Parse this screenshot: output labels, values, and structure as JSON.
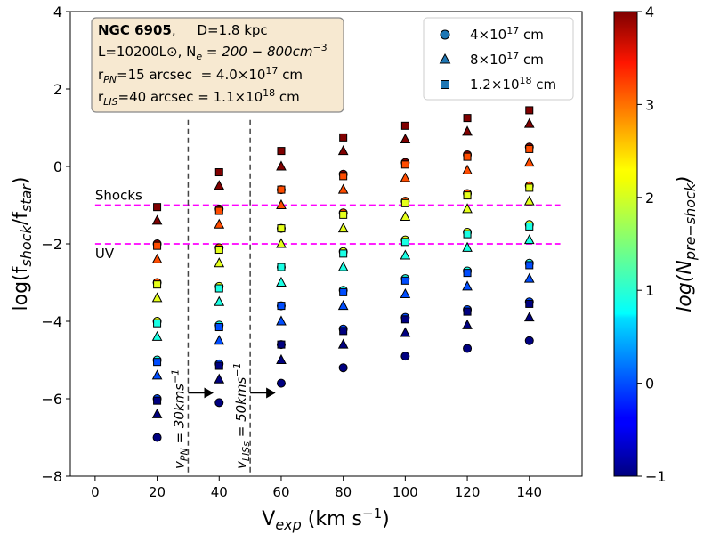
{
  "chart_data": {
    "type": "scatter",
    "xlabel": "V",
    "xlabel_sub": "exp",
    "xlabel_unit": " (km s",
    "xlabel_unit_sup": "−1",
    "xlabel_close": ")",
    "ylabel": "log(f",
    "ylabel_sub1": "shock",
    "ylabel_mid": "/f",
    "ylabel_sub2": "star",
    "ylabel_close": ")",
    "xlim": [
      -8,
      157
    ],
    "ylim": [
      -8,
      4
    ],
    "x_ticks": [
      0,
      20,
      40,
      60,
      80,
      100,
      120,
      140
    ],
    "y_ticks": [
      -8,
      -6,
      -4,
      -2,
      0,
      2,
      4
    ],
    "x_tick_labels": [
      "0",
      "20",
      "40",
      "60",
      "80",
      "100",
      "120",
      "140"
    ],
    "y_tick_labels": [
      "−8",
      "−6",
      "−4",
      "−2",
      "0",
      "2",
      "4"
    ],
    "colorbar": {
      "min": -1,
      "max": 4,
      "ticks": [
        -1,
        0,
        1,
        2,
        3,
        4
      ],
      "tick_labels": [
        "−1",
        "0",
        "1",
        "2",
        "3",
        "4"
      ],
      "label": "log(N",
      "label_sub": "pre−shock",
      "label_close": ")",
      "colormap": "jet"
    },
    "info_box": {
      "line1_bold": "NGC 6905",
      "line1_rest": ",     D=1.8 kpc",
      "line2": "L=10200L⊙, N",
      "line2_sub": "e",
      "line2_rest": " = 200 − 800cm",
      "line2_sup": "−3",
      "line3_pre": "r",
      "line3_sub": "PN",
      "line3_mid": "=15 arcsec  = 4.0×10",
      "line3_sup": "17",
      "line3_unit": " cm",
      "line4_pre": "r",
      "line4_sub": "LIS",
      "line4_mid": "=40 arcsec = 1.1×10",
      "line4_sup": "18",
      "line4_unit": " cm",
      "background": "#f7e9d1"
    },
    "legend": {
      "position": "top-right",
      "entries": [
        {
          "marker": "circle",
          "label": "4×10",
          "sup": "17",
          "unit": " cm"
        },
        {
          "marker": "triangle",
          "label": "8×10",
          "sup": "17",
          "unit": " cm"
        },
        {
          "marker": "square",
          "label": "1.2×10",
          "sup": "18",
          "unit": " cm"
        }
      ],
      "marker_color": "#1f77b4"
    },
    "hlines": [
      {
        "y": -1,
        "label": "Shocks",
        "color": "#ff00ff"
      },
      {
        "y": -2,
        "label": "UV",
        "color": "#ff00ff"
      }
    ],
    "hline_xrange": [
      0,
      150
    ],
    "vlines": [
      {
        "x": 30,
        "label": "v",
        "label_sub": "PN",
        "label_rest": " = 30kms",
        "label_sup": "−1"
      },
      {
        "x": 50,
        "label": "v",
        "label_sub": "LISs",
        "label_rest": " = 50kms",
        "label_sup": "−1"
      }
    ],
    "vline_yrange": [
      -8,
      1.2
    ],
    "arrows_y": -5.85,
    "log_n_levels": [
      -1,
      0,
      1,
      2,
      3,
      4
    ],
    "x": [
      20,
      40,
      60,
      80,
      100,
      120,
      140
    ],
    "series": [
      {
        "name": "4×10^17 cm",
        "marker": "circle",
        "x_offset": 0,
        "y_min_at_lognm1": [
          -7.0,
          -6.1,
          -5.6,
          -5.2,
          -4.9,
          -4.7,
          -4.5
        ]
      },
      {
        "name": "8×10^17 cm",
        "marker": "triangle",
        "x_offset": 0,
        "y_min_at_lognm1": [
          -6.4,
          -5.5,
          -5.0,
          -4.6,
          -4.3,
          -4.1,
          -3.9
        ]
      },
      {
        "name": "1.2×10^18 cm",
        "marker": "square",
        "x_offset": 0,
        "y_min_at_lognm1": [
          -6.05,
          -5.15,
          -4.6,
          -4.25,
          -3.95,
          -3.75,
          -3.55
        ]
      }
    ],
    "y_step_per_dex": 1.0
  }
}
